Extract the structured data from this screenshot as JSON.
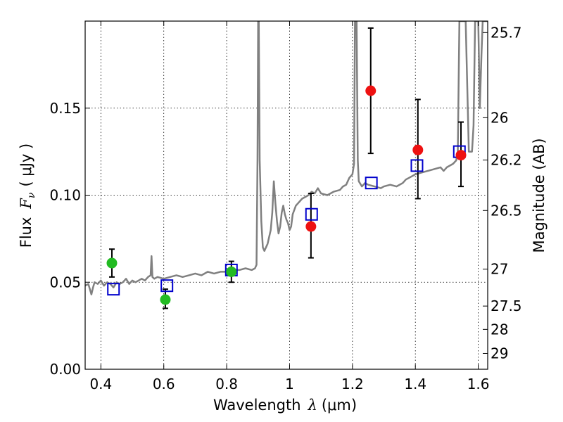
{
  "chart_data": {
    "type": "scatter",
    "xlabel_prefix": "Wavelength",
    "xlabel_symbol": "λ",
    "xlabel_unit": "(μm)",
    "ylabel_prefix": "Flux",
    "ylabel_symbol": "F",
    "ylabel_sub": "ν",
    "ylabel_unit": "( μJy )",
    "y2label": "Magnitude (AB)",
    "xlim": [
      0.35,
      1.63
    ],
    "ylim": [
      0.0,
      0.2
    ],
    "grid": true,
    "x_ticks": [
      0.4,
      0.6,
      0.8,
      1.0,
      1.2,
      1.4,
      1.6
    ],
    "x_tick_labels": [
      "0.4",
      "0.6",
      "0.8",
      "1",
      "1.2",
      "1.4",
      "1.6"
    ],
    "y_ticks": [
      0.0,
      0.05,
      0.1,
      0.15
    ],
    "y_tick_labels": [
      "0.00",
      "0.05",
      "0.10",
      "0.15"
    ],
    "y2_ticks": [
      {
        "label": "25.7",
        "flux": 0.1934
      },
      {
        "label": "26",
        "flux": 0.1445
      },
      {
        "label": "26.2",
        "flux": 0.1202
      },
      {
        "label": "26.5",
        "flux": 0.0912
      },
      {
        "label": "27",
        "flux": 0.0575
      },
      {
        "label": "27.5",
        "flux": 0.0363
      },
      {
        "label": "28",
        "flux": 0.0229
      },
      {
        "label": "29",
        "flux": 0.0091
      }
    ],
    "spectrum": {
      "color": "#808080",
      "points": [
        [
          0.35,
          0.048
        ],
        [
          0.36,
          0.049
        ],
        [
          0.365,
          0.046
        ],
        [
          0.37,
          0.043
        ],
        [
          0.375,
          0.047
        ],
        [
          0.38,
          0.05
        ],
        [
          0.39,
          0.049
        ],
        [
          0.4,
          0.051
        ],
        [
          0.41,
          0.048
        ],
        [
          0.42,
          0.05
        ],
        [
          0.43,
          0.049
        ],
        [
          0.44,
          0.047
        ],
        [
          0.45,
          0.05
        ],
        [
          0.46,
          0.049
        ],
        [
          0.47,
          0.05
        ],
        [
          0.48,
          0.052
        ],
        [
          0.49,
          0.049
        ],
        [
          0.5,
          0.051
        ],
        [
          0.51,
          0.05
        ],
        [
          0.52,
          0.051
        ],
        [
          0.53,
          0.052
        ],
        [
          0.54,
          0.051
        ],
        [
          0.55,
          0.053
        ],
        [
          0.558,
          0.054
        ],
        [
          0.561,
          0.065
        ],
        [
          0.564,
          0.053
        ],
        [
          0.57,
          0.052
        ],
        [
          0.58,
          0.053
        ],
        [
          0.6,
          0.052
        ],
        [
          0.62,
          0.053
        ],
        [
          0.64,
          0.054
        ],
        [
          0.66,
          0.053
        ],
        [
          0.68,
          0.054
        ],
        [
          0.7,
          0.055
        ],
        [
          0.72,
          0.054
        ],
        [
          0.74,
          0.056
        ],
        [
          0.76,
          0.055
        ],
        [
          0.78,
          0.056
        ],
        [
          0.8,
          0.056
        ],
        [
          0.82,
          0.057
        ],
        [
          0.84,
          0.057
        ],
        [
          0.86,
          0.058
        ],
        [
          0.88,
          0.057
        ],
        [
          0.89,
          0.058
        ],
        [
          0.895,
          0.06
        ],
        [
          0.898,
          0.12
        ],
        [
          0.9,
          0.2
        ],
        [
          0.902,
          0.2
        ],
        [
          0.905,
          0.12
        ],
        [
          0.91,
          0.085
        ],
        [
          0.915,
          0.07
        ],
        [
          0.92,
          0.068
        ],
        [
          0.93,
          0.072
        ],
        [
          0.94,
          0.08
        ],
        [
          0.945,
          0.09
        ],
        [
          0.95,
          0.108
        ],
        [
          0.955,
          0.095
        ],
        [
          0.96,
          0.085
        ],
        [
          0.965,
          0.078
        ],
        [
          0.97,
          0.082
        ],
        [
          0.975,
          0.09
        ],
        [
          0.98,
          0.094
        ],
        [
          0.985,
          0.089
        ],
        [
          0.99,
          0.086
        ],
        [
          0.995,
          0.084
        ],
        [
          1.0,
          0.08
        ],
        [
          1.005,
          0.082
        ],
        [
          1.01,
          0.089
        ],
        [
          1.02,
          0.094
        ],
        [
          1.03,
          0.096
        ],
        [
          1.04,
          0.098
        ],
        [
          1.05,
          0.099
        ],
        [
          1.06,
          0.1
        ],
        [
          1.07,
          0.102
        ],
        [
          1.08,
          0.101
        ],
        [
          1.09,
          0.104
        ],
        [
          1.1,
          0.101
        ],
        [
          1.12,
          0.1
        ],
        [
          1.14,
          0.102
        ],
        [
          1.16,
          0.103
        ],
        [
          1.17,
          0.105
        ],
        [
          1.18,
          0.106
        ],
        [
          1.19,
          0.11
        ],
        [
          1.2,
          0.112
        ],
        [
          1.205,
          0.118
        ],
        [
          1.208,
          0.2
        ],
        [
          1.213,
          0.2
        ],
        [
          1.217,
          0.12
        ],
        [
          1.22,
          0.108
        ],
        [
          1.23,
          0.105
        ],
        [
          1.24,
          0.107
        ],
        [
          1.25,
          0.106
        ],
        [
          1.27,
          0.105
        ],
        [
          1.29,
          0.104
        ],
        [
          1.3,
          0.105
        ],
        [
          1.32,
          0.106
        ],
        [
          1.34,
          0.105
        ],
        [
          1.36,
          0.107
        ],
        [
          1.37,
          0.109
        ],
        [
          1.38,
          0.11
        ],
        [
          1.39,
          0.111
        ],
        [
          1.4,
          0.112
        ],
        [
          1.42,
          0.113
        ],
        [
          1.44,
          0.114
        ],
        [
          1.46,
          0.115
        ],
        [
          1.48,
          0.116
        ],
        [
          1.49,
          0.114
        ],
        [
          1.5,
          0.116
        ],
        [
          1.52,
          0.118
        ],
        [
          1.53,
          0.12
        ],
        [
          1.535,
          0.125
        ],
        [
          1.54,
          0.2
        ],
        [
          1.56,
          0.2
        ],
        [
          1.57,
          0.125
        ],
        [
          1.58,
          0.125
        ],
        [
          1.585,
          0.14
        ],
        [
          1.59,
          0.2
        ],
        [
          1.6,
          0.2
        ],
        [
          1.605,
          0.15
        ],
        [
          1.61,
          0.18
        ],
        [
          1.614,
          0.2
        ],
        [
          1.63,
          0.2
        ]
      ]
    },
    "observed_green": {
      "color": "#22bb22",
      "points": [
        {
          "x": 0.435,
          "y": 0.061,
          "err_lo": 0.053,
          "err_hi": 0.069
        },
        {
          "x": 0.605,
          "y": 0.04,
          "err_lo": 0.035,
          "err_hi": 0.046
        },
        {
          "x": 0.815,
          "y": 0.056,
          "err_lo": 0.05,
          "err_hi": 0.062
        }
      ]
    },
    "observed_red": {
      "color": "#ee1111",
      "points": [
        {
          "x": 1.068,
          "y": 0.082,
          "err_lo": 0.064,
          "err_hi": 0.101
        },
        {
          "x": 1.258,
          "y": 0.16,
          "err_lo": 0.124,
          "err_hi": 0.196
        },
        {
          "x": 1.408,
          "y": 0.126,
          "err_lo": 0.098,
          "err_hi": 0.155
        },
        {
          "x": 1.545,
          "y": 0.123,
          "err_lo": 0.105,
          "err_hi": 0.142
        }
      ]
    },
    "model_squares": {
      "color": "#0000cc",
      "points": [
        {
          "x": 0.44,
          "y": 0.046
        },
        {
          "x": 0.61,
          "y": 0.048
        },
        {
          "x": 0.815,
          "y": 0.057
        },
        {
          "x": 1.07,
          "y": 0.089
        },
        {
          "x": 1.26,
          "y": 0.107
        },
        {
          "x": 1.405,
          "y": 0.117
        },
        {
          "x": 1.54,
          "y": 0.125
        }
      ]
    }
  }
}
